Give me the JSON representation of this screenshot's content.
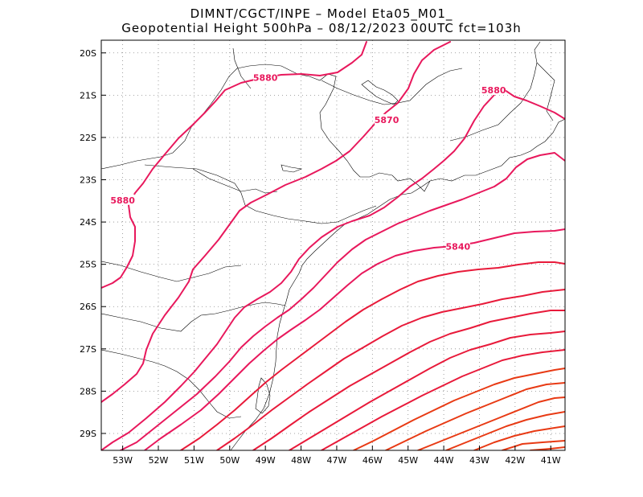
{
  "title": {
    "line1": "DIMNT/CGCT/INPE –  Model Eta05_M01_",
    "line2": "Geopotential Height 500hPa –  08/12/2023 00UTC fct=103h"
  },
  "map": {
    "lon_range": [
      -53.6,
      -40.6
    ],
    "lat_range": [
      -29.4,
      -19.7
    ],
    "lat_ticks": [
      {
        "value": -20,
        "label": "20S"
      },
      {
        "value": -21,
        "label": "21S"
      },
      {
        "value": -22,
        "label": "22S"
      },
      {
        "value": -23,
        "label": "23S"
      },
      {
        "value": -24,
        "label": "24S"
      },
      {
        "value": -25,
        "label": "25S"
      },
      {
        "value": -26,
        "label": "26S"
      },
      {
        "value": -27,
        "label": "27S"
      },
      {
        "value": -28,
        "label": "28S"
      },
      {
        "value": -29,
        "label": "29S"
      }
    ],
    "lon_ticks": [
      {
        "value": -53,
        "label": "53W"
      },
      {
        "value": -52,
        "label": "52W"
      },
      {
        "value": -51,
        "label": "51W"
      },
      {
        "value": -50,
        "label": "50W"
      },
      {
        "value": -49,
        "label": "49W"
      },
      {
        "value": -48,
        "label": "48W"
      },
      {
        "value": -47,
        "label": "47W"
      },
      {
        "value": -46,
        "label": "46W"
      },
      {
        "value": -45,
        "label": "45W"
      },
      {
        "value": -44,
        "label": "44W"
      },
      {
        "value": -43,
        "label": "43W"
      },
      {
        "value": -42,
        "label": "42W"
      },
      {
        "value": -41,
        "label": "41W"
      }
    ],
    "grid": "dotted",
    "contour_labels": [
      {
        "text": "5880",
        "lon": -49.0,
        "lat": -20.6,
        "color": "#e8185c"
      },
      {
        "text": "5880",
        "lon": -53.0,
        "lat": -23.5,
        "color": "#e8185c"
      },
      {
        "text": "5880",
        "lon": -42.6,
        "lat": -20.9,
        "color": "#e8185c"
      },
      {
        "text": "5870",
        "lon": -45.6,
        "lat": -21.6,
        "color": "#e8185c"
      },
      {
        "text": "5840",
        "lon": -43.6,
        "lat": -24.6,
        "color": "#e8185c"
      }
    ],
    "colors": {
      "contour_high": "#e8185c",
      "contour_mid": "#e81a3a",
      "contour_low": "#e83a14",
      "boundary": "#000000",
      "grid": "#888888"
    }
  }
}
